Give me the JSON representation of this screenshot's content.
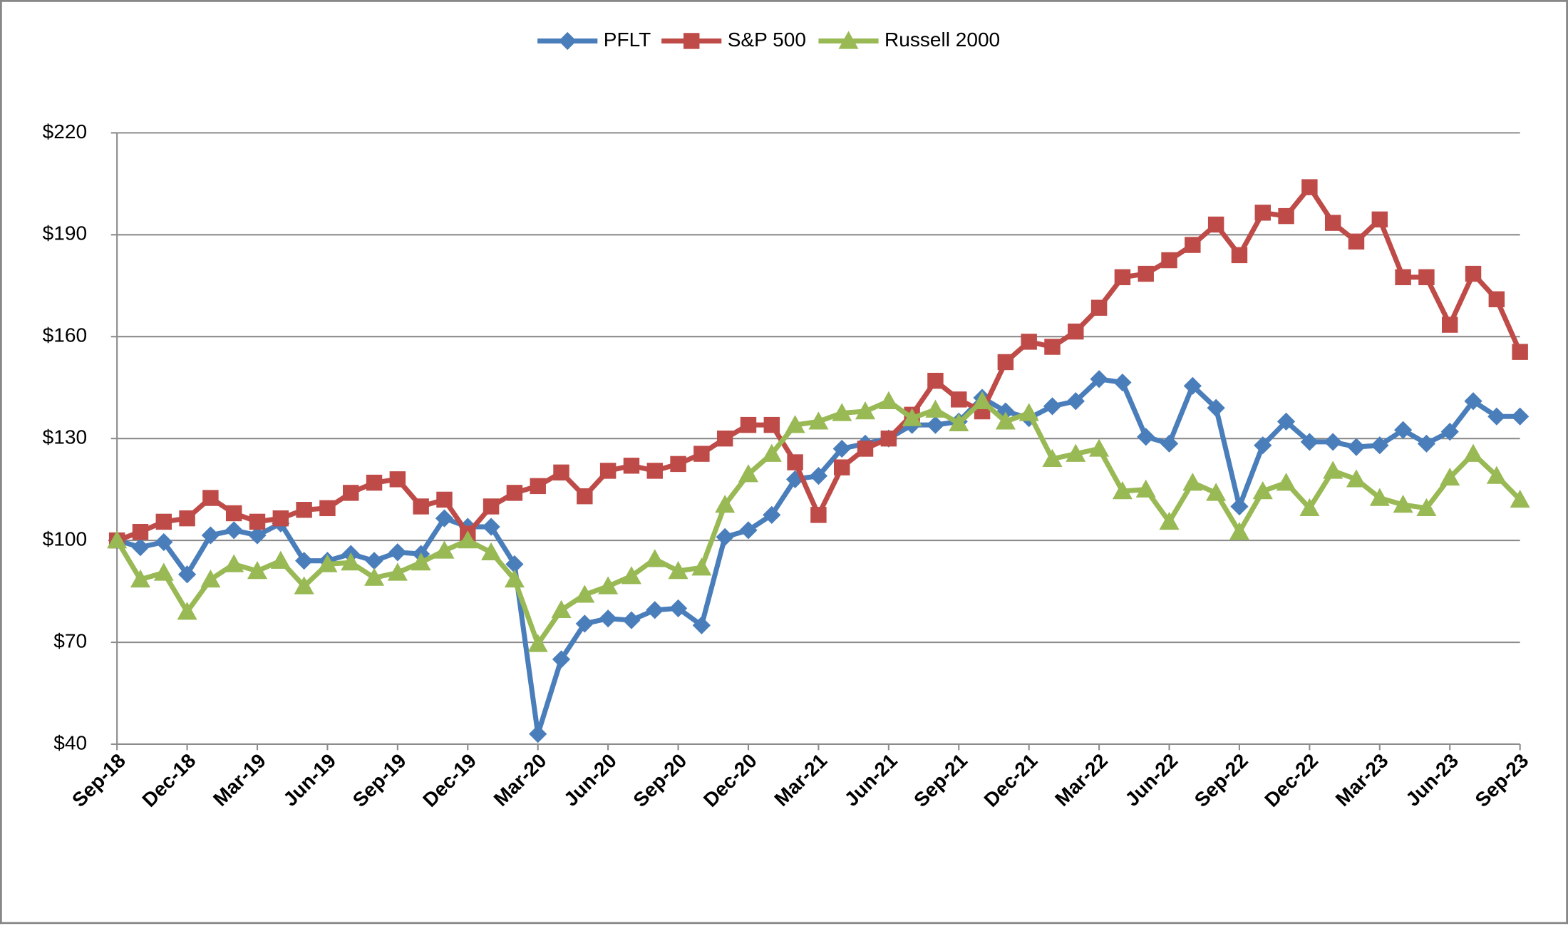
{
  "chart_data": {
    "type": "line",
    "categories": [
      "Sep-18",
      null,
      null,
      "Dec-18",
      null,
      null,
      "Mar-19",
      null,
      null,
      "Jun-19",
      null,
      null,
      "Sep-19",
      null,
      null,
      "Dec-19",
      null,
      null,
      "Mar-20",
      null,
      null,
      "Jun-20",
      null,
      null,
      "Sep-20",
      null,
      null,
      "Dec-20",
      null,
      null,
      "Mar-21",
      null,
      null,
      "Jun-21",
      null,
      null,
      "Sep-21",
      null,
      null,
      "Dec-21",
      null,
      null,
      "Mar-22",
      null,
      null,
      "Jun-22",
      null,
      null,
      "Sep-22",
      null,
      null,
      "Dec-22",
      null,
      null,
      "Mar-23",
      null,
      null,
      "Jun-23",
      null,
      null,
      "Sep-23"
    ],
    "series": [
      {
        "name": "PFLT",
        "color": "#4a7ebb",
        "marker": "diamond",
        "values": [
          100,
          98,
          99.5,
          90,
          101.5,
          103,
          101.5,
          105,
          94,
          94,
          96,
          94,
          96.5,
          96,
          106.5,
          104,
          104,
          93,
          43,
          65,
          75.5,
          77,
          76.5,
          79.5,
          80,
          75,
          101,
          103,
          107.5,
          118,
          119,
          127,
          128.5,
          130,
          134,
          134,
          135,
          142,
          138,
          136,
          139.5,
          141,
          147.5,
          146.5,
          130.5,
          128.5,
          145.5,
          139,
          110,
          128,
          135,
          129,
          129,
          127.5,
          128,
          132.5,
          128.5,
          132,
          141,
          136.5,
          136.5
        ]
      },
      {
        "name": "S&P 500",
        "color": "#be4b48",
        "marker": "square",
        "values": [
          100,
          102.5,
          105.5,
          106.5,
          112.5,
          108,
          105.5,
          106.5,
          109,
          109.5,
          114,
          117,
          118,
          110,
          112,
          102,
          110,
          114,
          116,
          120,
          113,
          120.5,
          122,
          120.5,
          122.5,
          125.5,
          130,
          134,
          134,
          123,
          107.5,
          121.5,
          127,
          130,
          137,
          147,
          141.5,
          138,
          152.5,
          158.5,
          157,
          161.5,
          168.5,
          177.5,
          178.5,
          182.5,
          187,
          193,
          184,
          196.5,
          195.5,
          204,
          193.5,
          188,
          194.5,
          177.5,
          177.5,
          163.5,
          178.5,
          171,
          155.5
        ]
      },
      {
        "name": "Russell 2000",
        "color": "#98b954",
        "marker": "triangle",
        "values": [
          100,
          88.5,
          90.5,
          79,
          88.5,
          93,
          91,
          94,
          86.5,
          93,
          93.5,
          89,
          90.5,
          93.5,
          97,
          100,
          96.5,
          88.5,
          69.5,
          79.5,
          84,
          86.5,
          89.5,
          94.5,
          91,
          92,
          110.5,
          119.5,
          125.5,
          134,
          135,
          137.5,
          138,
          141,
          136,
          138.5,
          134.5,
          141,
          135,
          137.5,
          124,
          125.5,
          127,
          114.5,
          115,
          105.5,
          117,
          114,
          102.5,
          114.5,
          117,
          109.5,
          120.5,
          118,
          112.5,
          110.5,
          109.5,
          118.5,
          125.5,
          119,
          112
        ]
      }
    ],
    "ylim": [
      40,
      220
    ],
    "yticks": [
      {
        "value": 40,
        "label": "$40"
      },
      {
        "value": 70,
        "label": "$70"
      },
      {
        "value": 100,
        "label": "$100"
      },
      {
        "value": 130,
        "label": "$130"
      },
      {
        "value": 160,
        "label": "$160"
      },
      {
        "value": 190,
        "label": "$190"
      },
      {
        "value": 220,
        "label": "$220"
      }
    ],
    "grid": true,
    "legend": "top"
  }
}
